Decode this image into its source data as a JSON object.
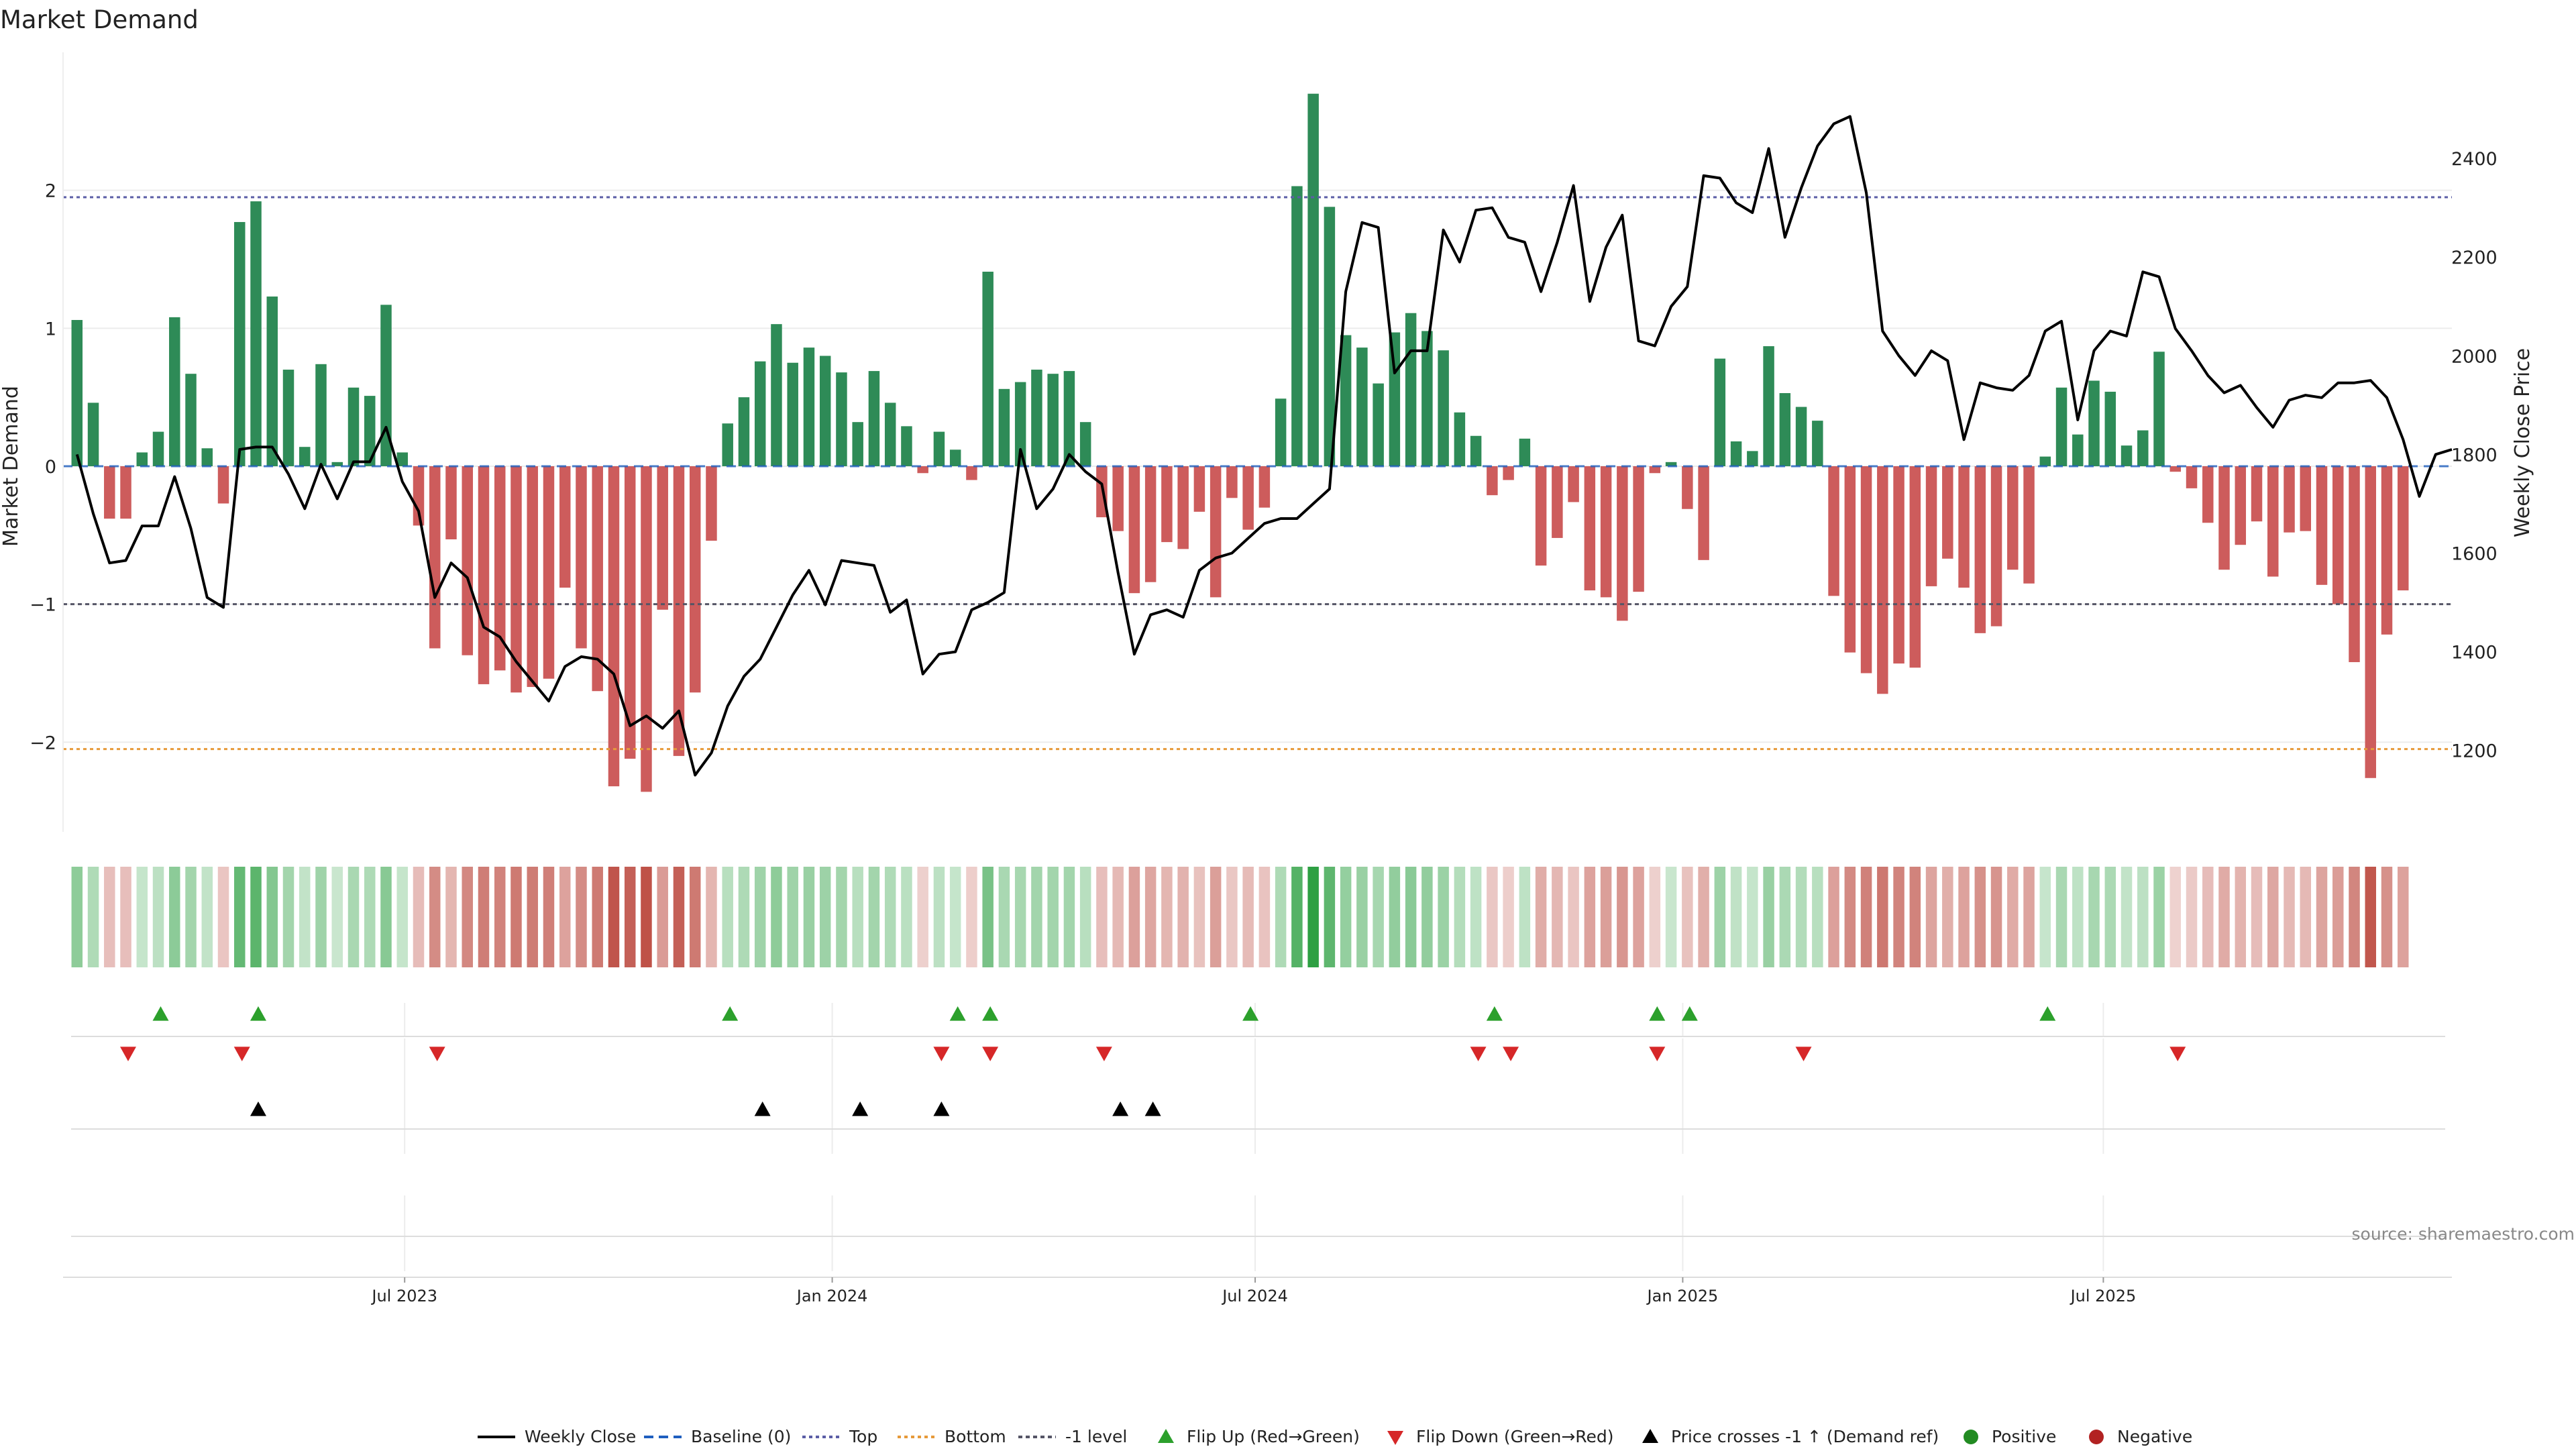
{
  "chart_data": {
    "type": "bar",
    "title": "Market Demand",
    "ylabel": "Market Demand",
    "y2label": "Weekly Close Price",
    "ylim": [
      -2.65,
      3.0
    ],
    "y2lim": [
      1035,
      2615
    ],
    "yticks": [
      -2,
      -1,
      0,
      1,
      2
    ],
    "y2ticks": [
      1200,
      1400,
      1600,
      1800,
      2000,
      2200,
      2400
    ],
    "grid": true,
    "levels": {
      "top": 1.95,
      "bottom": -2.05,
      "minus_one": -1.0,
      "baseline": 0
    },
    "x_start": "2023-02-04",
    "x_end": "2025-11-28",
    "bar_start": "2023-02-10",
    "bar_interval_days": 7,
    "xticks": [
      {
        "label": "Jul 2023",
        "date": "2023-07-01"
      },
      {
        "label": "Jan 2024",
        "date": "2024-01-01"
      },
      {
        "label": "Jul 2024",
        "date": "2024-07-01"
      },
      {
        "label": "Jan 2025",
        "date": "2025-01-01"
      },
      {
        "label": "Jul 2025",
        "date": "2025-07-01"
      }
    ],
    "series": [
      {
        "name": "Market Demand",
        "type": "bar",
        "values": [
          1.06,
          0.46,
          -0.38,
          -0.38,
          0.1,
          0.25,
          1.08,
          0.67,
          0.13,
          -0.27,
          1.77,
          1.92,
          1.23,
          0.7,
          0.14,
          0.74,
          0.03,
          0.57,
          0.51,
          1.17,
          0.1,
          -0.43,
          -1.32,
          -0.53,
          -1.37,
          -1.58,
          -1.48,
          -1.64,
          -1.6,
          -1.54,
          -0.88,
          -1.32,
          -1.63,
          -2.32,
          -2.12,
          -2.36,
          -1.04,
          -2.1,
          -1.64,
          -0.54,
          0.31,
          0.5,
          0.76,
          1.03,
          0.75,
          0.86,
          0.8,
          0.68,
          0.32,
          0.69,
          0.46,
          0.29,
          -0.05,
          0.25,
          0.12,
          -0.1,
          1.41,
          0.56,
          0.61,
          0.7,
          0.67,
          0.69,
          0.32,
          -0.37,
          -0.47,
          -0.92,
          -0.84,
          -0.55,
          -0.6,
          -0.33,
          -0.95,
          -0.23,
          -0.46,
          -0.3,
          0.49,
          2.03,
          2.7,
          1.88,
          0.95,
          0.86,
          0.6,
          0.97,
          1.11,
          0.98,
          0.84,
          0.39,
          0.22,
          -0.21,
          -0.1,
          0.2,
          -0.72,
          -0.52,
          -0.26,
          -0.9,
          -0.95,
          -1.12,
          -0.91,
          -0.05,
          0.03,
          -0.31,
          -0.68,
          0.78,
          0.18,
          0.11,
          0.87,
          0.53,
          0.43,
          0.33,
          -0.94,
          -1.35,
          -1.5,
          -1.65,
          -1.43,
          -1.46,
          -0.87,
          -0.67,
          -0.88,
          -1.21,
          -1.16,
          -0.75,
          -0.85,
          0.07,
          0.57,
          0.23,
          0.62,
          0.54,
          0.15,
          0.26,
          0.83,
          -0.04,
          -0.16,
          -0.41,
          -0.75,
          -0.57,
          -0.4,
          -0.8,
          -0.48,
          -0.47,
          -0.86,
          -1.0,
          -1.42,
          -2.26,
          -1.22,
          -0.9
        ]
      },
      {
        "name": "Weekly Close",
        "type": "line",
        "axis": "right",
        "values": [
          1800,
          1680,
          1580,
          1585,
          1655,
          1655,
          1755,
          1650,
          1510,
          1490,
          1810,
          1815,
          1815,
          1760,
          1690,
          1780,
          1710,
          1785,
          1785,
          1855,
          1745,
          1685,
          1510,
          1580,
          1550,
          1450,
          1430,
          1380,
          1340,
          1300,
          1370,
          1390,
          1385,
          1355,
          1250,
          1270,
          1245,
          1280,
          1150,
          1195,
          1290,
          1350,
          1385,
          1450,
          1515,
          1565,
          1495,
          1585,
          1580,
          1575,
          1480,
          1505,
          1355,
          1395,
          1400,
          1485,
          1500,
          1520,
          1810,
          1690,
          1730,
          1800,
          1765,
          1740,
          1560,
          1395,
          1475,
          1485,
          1470,
          1565,
          1590,
          1600,
          1630,
          1660,
          1670,
          1670,
          1700,
          1730,
          2130,
          2270,
          2260,
          1965,
          2010,
          2010,
          2255,
          2190,
          2295,
          2300,
          2240,
          2230,
          2130,
          2230,
          2345,
          2110,
          2220,
          2285,
          2030,
          2020,
          2100,
          2140,
          2365,
          2360,
          2310,
          2290,
          2420,
          2240,
          2340,
          2425,
          2470,
          2485,
          2330,
          2050,
          2000,
          1960,
          2010,
          1990,
          1830,
          1945,
          1935,
          1930,
          1960,
          2050,
          2070,
          1870,
          2010,
          2050,
          2040,
          2170,
          2160,
          2055,
          2010,
          1960,
          1925,
          1940,
          1895,
          1855,
          1910,
          1920,
          1915,
          1945,
          1945,
          1950,
          1915,
          1830,
          1715,
          1800,
          1810
        ]
      }
    ],
    "heat_strip": {
      "name": "Demand intensity",
      "source": "Market Demand"
    },
    "events": {
      "flip_up_dates": [
        "2023-03-18",
        "2023-04-29",
        "2023-11-18",
        "2024-02-24",
        "2024-03-09",
        "2024-06-29",
        "2024-10-12",
        "2024-12-21",
        "2025-01-04",
        "2025-06-07"
      ],
      "flip_down_dates": [
        "2023-03-04",
        "2023-04-22",
        "2023-07-15",
        "2024-02-17",
        "2024-03-09",
        "2024-04-27",
        "2024-10-05",
        "2024-10-19",
        "2024-12-21",
        "2025-02-22",
        "2025-08-02"
      ],
      "price_cross_dates": [
        "2023-04-29",
        "2023-12-02",
        "2024-01-13",
        "2024-02-17",
        "2024-05-04",
        "2024-05-18"
      ]
    },
    "legend": {
      "position": "bottom",
      "entries": [
        "Weekly Close",
        "Baseline (0)",
        "Top",
        "Bottom",
        "-1 level",
        "Flip Up (Red→Green)",
        "Flip Down (Green→Red)",
        "Price crosses -1 ↑ (Demand ref)",
        "Positive",
        "Negative"
      ]
    },
    "annotation": "source: sharemaestro.com"
  },
  "colors": {
    "positive_bar": "#2e8b57",
    "negative_bar": "#cd5c5c",
    "price_line": "#000000",
    "baseline": "#1f5fbf",
    "top_level": "#5b5ea6",
    "bottom_level": "#e69a3a",
    "minus_one_level": "#555566",
    "flip_up": "#2ca02c",
    "flip_down": "#d62728",
    "price_cross": "#000000",
    "positive_dot": "#228b22",
    "negative_dot": "#b22222",
    "grid": "#ececec",
    "axis_text": "#222222",
    "annotation": "#888888"
  }
}
